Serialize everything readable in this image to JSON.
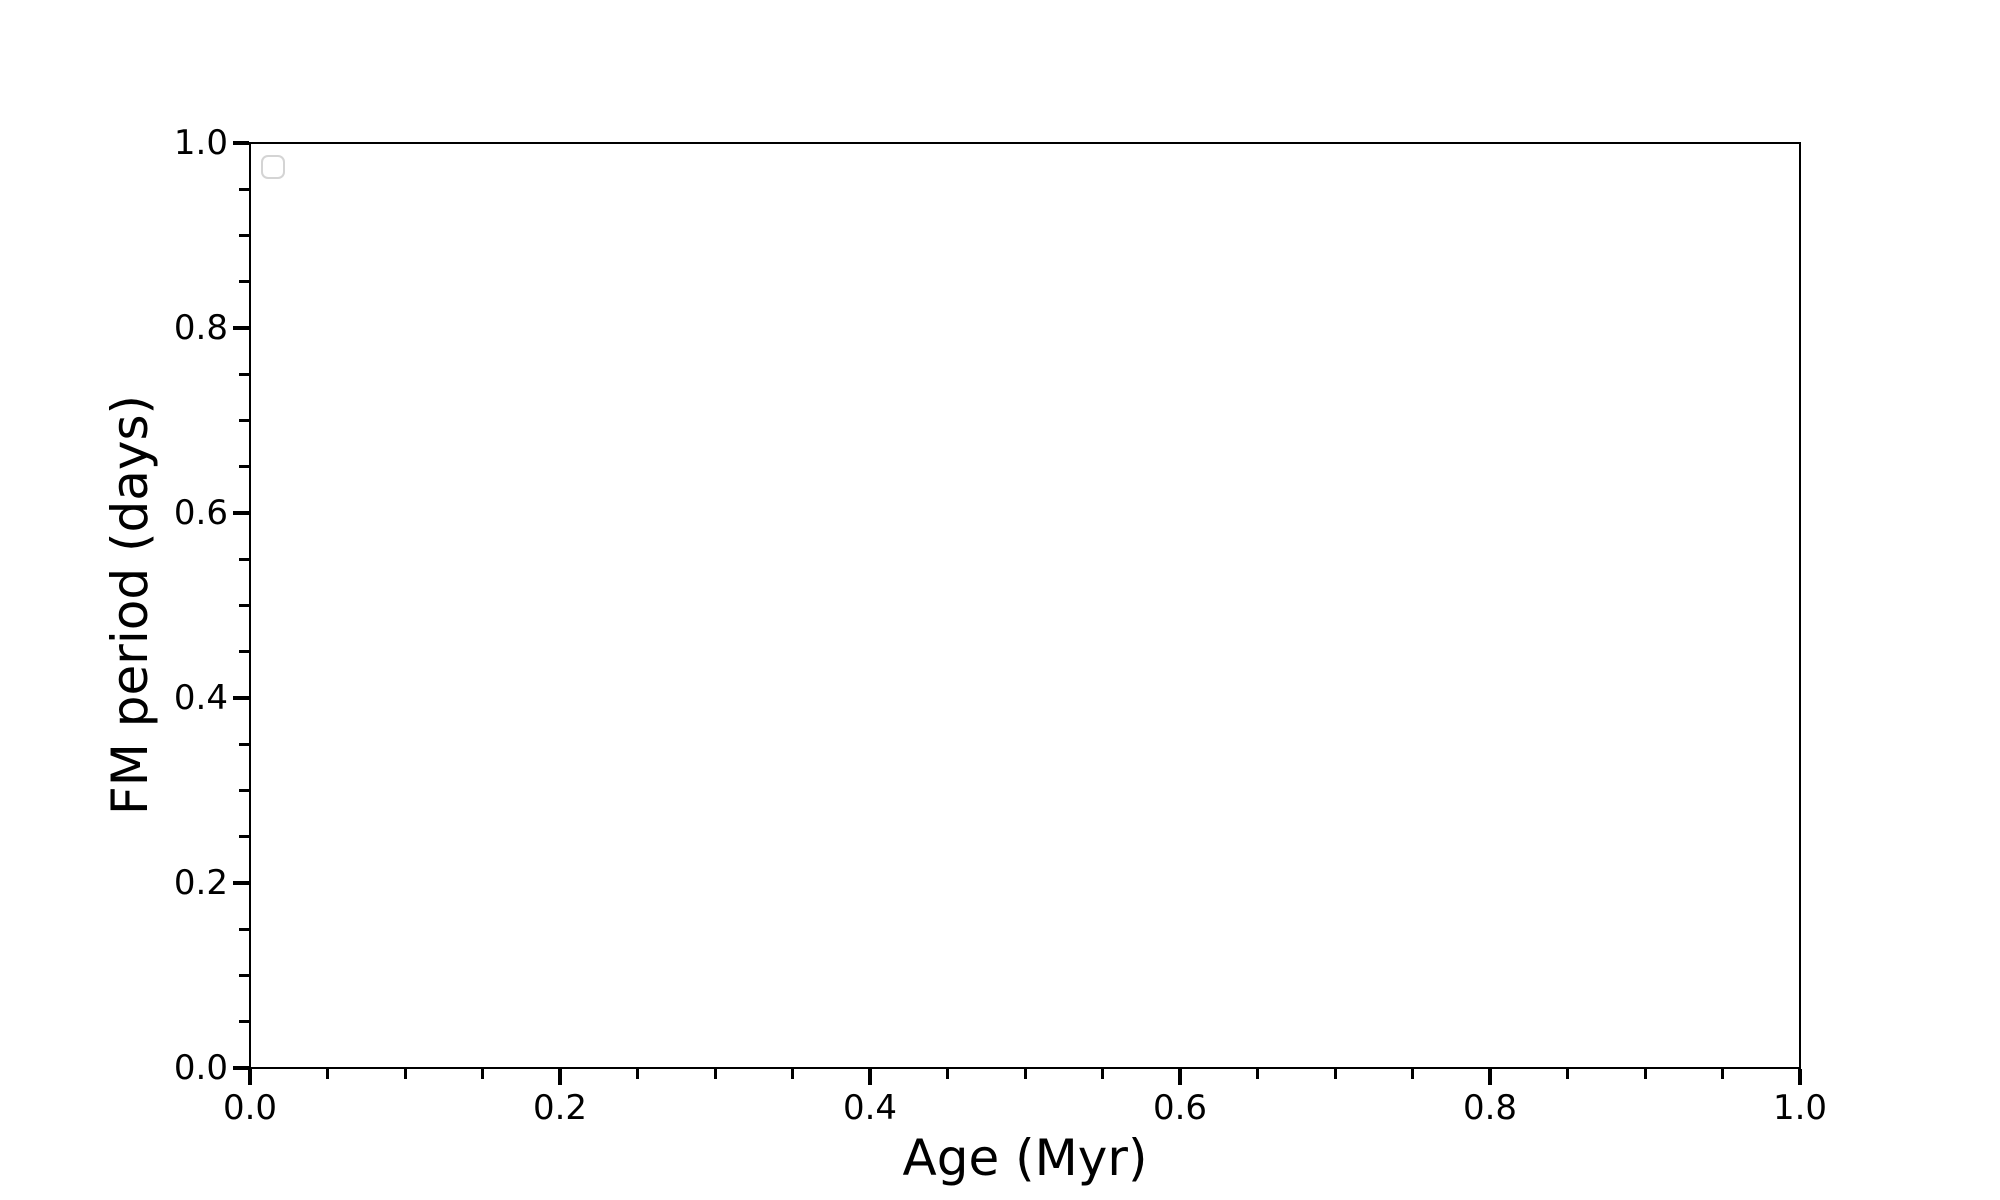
{
  "figure": {
    "background": "#ffffff"
  },
  "colors": {
    "axis": "#000000",
    "text": "#000000",
    "legend_border": "#d4d4d4",
    "plot_background": "#ffffff"
  },
  "chart_data": {
    "type": "scatter",
    "title": "",
    "xlabel": "Age (Myr)",
    "ylabel": "FM period (days)",
    "xlim": [
      0.0,
      1.0
    ],
    "ylim": [
      0.0,
      1.0
    ],
    "x_ticks": [
      0.0,
      0.2,
      0.4,
      0.6,
      0.8,
      1.0
    ],
    "x_tick_labels": [
      "0.0",
      "0.2",
      "0.4",
      "0.6",
      "0.8",
      "1.0"
    ],
    "y_ticks": [
      0.0,
      0.2,
      0.4,
      0.6,
      0.8,
      1.0
    ],
    "y_tick_labels": [
      "0.0",
      "0.2",
      "0.4",
      "0.6",
      "0.8",
      "1.0"
    ],
    "minor_tick_step": 0.05,
    "ticks_position": "bottom-left-outward",
    "grid": false,
    "legend": {
      "visible": true,
      "position": "upper left",
      "entries": []
    },
    "series": []
  }
}
